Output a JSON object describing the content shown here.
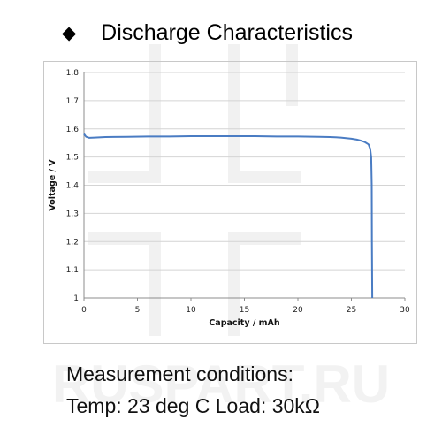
{
  "page": {
    "bullet_icon": "diamond-bullet",
    "title": "Discharge Characteristics",
    "conditions_line1": "Measurement conditions:",
    "conditions_line2": "Temp: 23 deg C  Load: 30kΩ"
  },
  "watermark": {
    "text": "RUSPART.RU",
    "color": "#f2f2f2"
  },
  "chart_data": {
    "type": "line",
    "xlabel": "Capacity  /  mAh",
    "ylabel": "Voltage  /  V",
    "xlim": [
      0,
      30
    ],
    "ylim": [
      1.0,
      1.8
    ],
    "xticks": [
      "0",
      "5",
      "10",
      "15",
      "20",
      "25",
      "30"
    ],
    "yticks": [
      "1",
      "1.1",
      "1.2",
      "1.3",
      "1.4",
      "1.5",
      "1.6",
      "1.7",
      "1.8"
    ],
    "grid": "horizontal",
    "legend": "none",
    "series": [
      {
        "color": "#4a7cc3",
        "x": [
          0,
          0.2,
          0.5,
          1,
          2,
          4,
          6,
          8,
          10,
          12,
          14,
          16,
          18,
          20,
          22,
          23,
          24,
          25,
          25.5,
          26,
          26.3,
          26.6,
          26.75,
          26.85,
          26.9,
          26.92,
          26.95
        ],
        "y": [
          1.582,
          1.572,
          1.568,
          1.569,
          1.571,
          1.572,
          1.573,
          1.573,
          1.574,
          1.574,
          1.574,
          1.574,
          1.573,
          1.573,
          1.572,
          1.571,
          1.569,
          1.565,
          1.562,
          1.557,
          1.552,
          1.545,
          1.53,
          1.5,
          1.4,
          1.2,
          1.0
        ]
      }
    ]
  }
}
